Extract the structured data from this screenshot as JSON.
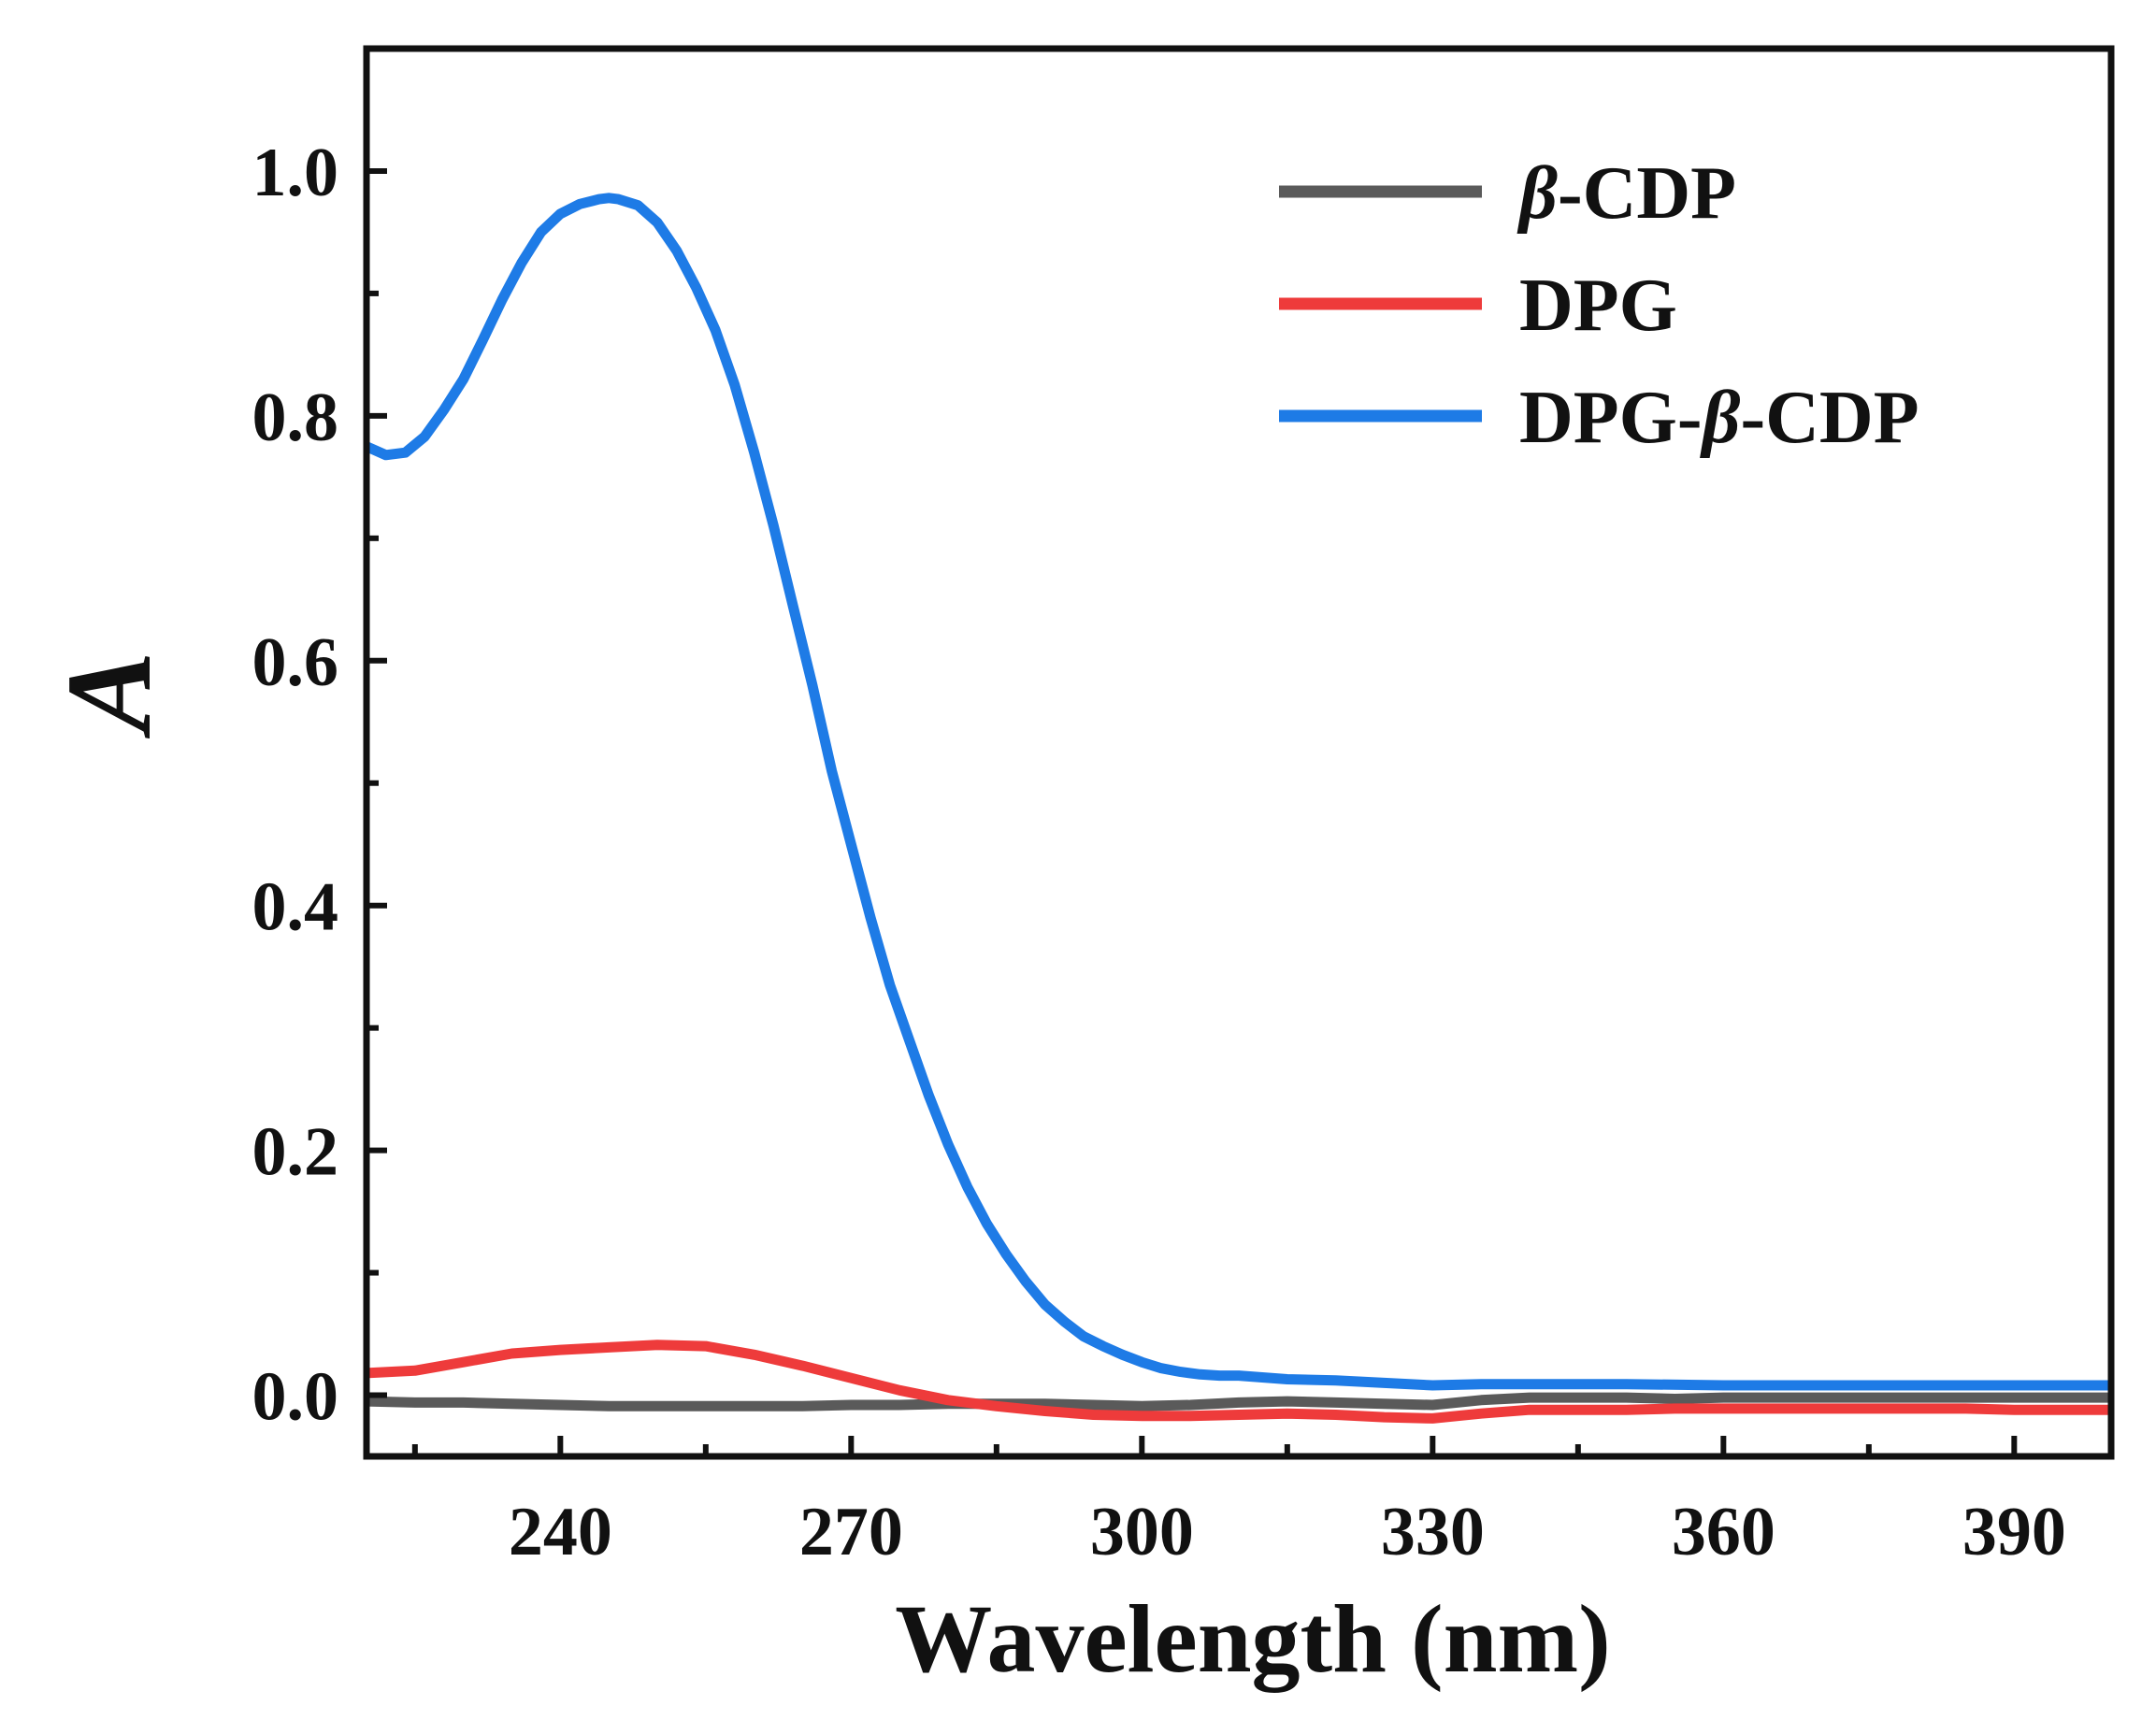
{
  "chart_data": {
    "type": "line",
    "title": "",
    "xlabel": "Wavelength (nm)",
    "ylabel": "A",
    "xlim": [
      220,
      400
    ],
    "ylim": [
      -0.05,
      1.1
    ],
    "x_ticks": [
      "240",
      "270",
      "300",
      "330",
      "360",
      "390"
    ],
    "y_ticks": [
      "0.0",
      "0.2",
      "0.4",
      "0.6",
      "0.8",
      "1.0"
    ],
    "grid": false,
    "legend_position": "top-right",
    "series": [
      {
        "name": "β-CDP",
        "name_prefix": "β",
        "name_suffix": "-CDP",
        "color": "#5a5a5a",
        "x": [
          220,
          225,
          230,
          235,
          240,
          245,
          250,
          255,
          260,
          265,
          270,
          275,
          280,
          285,
          290,
          295,
          300,
          305,
          310,
          315,
          320,
          325,
          330,
          335,
          340,
          345,
          350,
          355,
          360,
          365,
          370,
          375,
          380,
          385,
          390,
          395,
          400
        ],
        "y": [
          -0.005,
          -0.006,
          -0.006,
          -0.007,
          -0.008,
          -0.009,
          -0.009,
          -0.009,
          -0.009,
          -0.009,
          -0.008,
          -0.008,
          -0.007,
          -0.007,
          -0.007,
          -0.008,
          -0.009,
          -0.008,
          -0.006,
          -0.005,
          -0.006,
          -0.007,
          -0.008,
          -0.004,
          -0.002,
          -0.002,
          -0.002,
          -0.003,
          -0.002,
          -0.002,
          -0.002,
          -0.002,
          -0.002,
          -0.002,
          -0.002,
          -0.002,
          -0.002
        ]
      },
      {
        "name": "DPG",
        "name_prefix": "",
        "name_suffix": "DPG",
        "color": "#ee3b3b",
        "x": [
          220,
          225,
          230,
          235,
          240,
          245,
          250,
          255,
          260,
          265,
          270,
          275,
          280,
          285,
          290,
          295,
          300,
          305,
          310,
          315,
          320,
          325,
          330,
          335,
          340,
          345,
          350,
          355,
          360,
          365,
          370,
          375,
          380,
          385,
          390,
          395,
          400
        ],
        "y": [
          0.018,
          0.02,
          0.027,
          0.034,
          0.037,
          0.039,
          0.041,
          0.04,
          0.033,
          0.024,
          0.014,
          0.004,
          -0.004,
          -0.009,
          -0.013,
          -0.016,
          -0.017,
          -0.017,
          -0.016,
          -0.015,
          -0.016,
          -0.018,
          -0.019,
          -0.015,
          -0.012,
          -0.012,
          -0.012,
          -0.011,
          -0.011,
          -0.011,
          -0.011,
          -0.011,
          -0.011,
          -0.011,
          -0.012,
          -0.012,
          -0.012
        ]
      },
      {
        "name": "DPG-β-CDP",
        "name_prefix": "DPG-",
        "name_suffix": "-CDP",
        "color": "#1e7be6",
        "x": [
          220,
          222,
          224,
          226,
          228,
          230,
          232,
          234,
          236,
          238,
          240,
          242,
          244,
          245,
          246,
          248,
          250,
          252,
          254,
          256,
          258,
          260,
          262,
          264,
          266,
          268,
          270,
          272,
          274,
          276,
          278,
          280,
          282,
          284,
          286,
          288,
          290,
          292,
          294,
          296,
          298,
          300,
          302,
          304,
          306,
          308,
          310,
          315,
          320,
          325,
          330,
          335,
          340,
          345,
          350,
          360,
          370,
          380,
          390,
          400
        ],
        "y": [
          0.775,
          0.768,
          0.77,
          0.783,
          0.805,
          0.83,
          0.862,
          0.895,
          0.925,
          0.95,
          0.965,
          0.973,
          0.977,
          0.978,
          0.977,
          0.972,
          0.958,
          0.935,
          0.905,
          0.87,
          0.825,
          0.77,
          0.71,
          0.645,
          0.58,
          0.51,
          0.45,
          0.39,
          0.335,
          0.29,
          0.245,
          0.205,
          0.17,
          0.14,
          0.115,
          0.093,
          0.074,
          0.06,
          0.048,
          0.04,
          0.033,
          0.027,
          0.022,
          0.019,
          0.017,
          0.016,
          0.016,
          0.013,
          0.012,
          0.01,
          0.008,
          0.009,
          0.009,
          0.009,
          0.009,
          0.008,
          0.008,
          0.008,
          0.008,
          0.008
        ]
      }
    ]
  }
}
